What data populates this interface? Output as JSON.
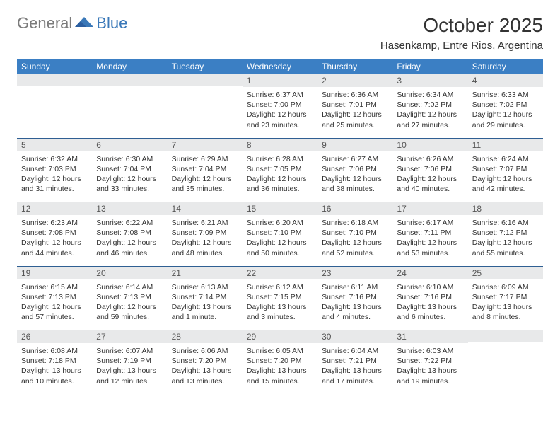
{
  "brand": {
    "general": "General",
    "blue": "Blue"
  },
  "title": "October 2025",
  "location": "Hasenkamp, Entre Rios, Argentina",
  "colors": {
    "header_bg": "#3b7fc4",
    "header_text": "#ffffff",
    "daynum_bg": "#e8e9ea",
    "week_sep": "#2f5f93",
    "logo_gray": "#7b7b7b",
    "logo_blue": "#3a78b8"
  },
  "weekdays": [
    "Sunday",
    "Monday",
    "Tuesday",
    "Wednesday",
    "Thursday",
    "Friday",
    "Saturday"
  ],
  "weeks": [
    [
      {
        "n": "",
        "sr": "",
        "ss": "",
        "dl": ""
      },
      {
        "n": "",
        "sr": "",
        "ss": "",
        "dl": ""
      },
      {
        "n": "",
        "sr": "",
        "ss": "",
        "dl": ""
      },
      {
        "n": "1",
        "sr": "Sunrise: 6:37 AM",
        "ss": "Sunset: 7:00 PM",
        "dl": "Daylight: 12 hours and 23 minutes."
      },
      {
        "n": "2",
        "sr": "Sunrise: 6:36 AM",
        "ss": "Sunset: 7:01 PM",
        "dl": "Daylight: 12 hours and 25 minutes."
      },
      {
        "n": "3",
        "sr": "Sunrise: 6:34 AM",
        "ss": "Sunset: 7:02 PM",
        "dl": "Daylight: 12 hours and 27 minutes."
      },
      {
        "n": "4",
        "sr": "Sunrise: 6:33 AM",
        "ss": "Sunset: 7:02 PM",
        "dl": "Daylight: 12 hours and 29 minutes."
      }
    ],
    [
      {
        "n": "5",
        "sr": "Sunrise: 6:32 AM",
        "ss": "Sunset: 7:03 PM",
        "dl": "Daylight: 12 hours and 31 minutes."
      },
      {
        "n": "6",
        "sr": "Sunrise: 6:30 AM",
        "ss": "Sunset: 7:04 PM",
        "dl": "Daylight: 12 hours and 33 minutes."
      },
      {
        "n": "7",
        "sr": "Sunrise: 6:29 AM",
        "ss": "Sunset: 7:04 PM",
        "dl": "Daylight: 12 hours and 35 minutes."
      },
      {
        "n": "8",
        "sr": "Sunrise: 6:28 AM",
        "ss": "Sunset: 7:05 PM",
        "dl": "Daylight: 12 hours and 36 minutes."
      },
      {
        "n": "9",
        "sr": "Sunrise: 6:27 AM",
        "ss": "Sunset: 7:06 PM",
        "dl": "Daylight: 12 hours and 38 minutes."
      },
      {
        "n": "10",
        "sr": "Sunrise: 6:26 AM",
        "ss": "Sunset: 7:06 PM",
        "dl": "Daylight: 12 hours and 40 minutes."
      },
      {
        "n": "11",
        "sr": "Sunrise: 6:24 AM",
        "ss": "Sunset: 7:07 PM",
        "dl": "Daylight: 12 hours and 42 minutes."
      }
    ],
    [
      {
        "n": "12",
        "sr": "Sunrise: 6:23 AM",
        "ss": "Sunset: 7:08 PM",
        "dl": "Daylight: 12 hours and 44 minutes."
      },
      {
        "n": "13",
        "sr": "Sunrise: 6:22 AM",
        "ss": "Sunset: 7:08 PM",
        "dl": "Daylight: 12 hours and 46 minutes."
      },
      {
        "n": "14",
        "sr": "Sunrise: 6:21 AM",
        "ss": "Sunset: 7:09 PM",
        "dl": "Daylight: 12 hours and 48 minutes."
      },
      {
        "n": "15",
        "sr": "Sunrise: 6:20 AM",
        "ss": "Sunset: 7:10 PM",
        "dl": "Daylight: 12 hours and 50 minutes."
      },
      {
        "n": "16",
        "sr": "Sunrise: 6:18 AM",
        "ss": "Sunset: 7:10 PM",
        "dl": "Daylight: 12 hours and 52 minutes."
      },
      {
        "n": "17",
        "sr": "Sunrise: 6:17 AM",
        "ss": "Sunset: 7:11 PM",
        "dl": "Daylight: 12 hours and 53 minutes."
      },
      {
        "n": "18",
        "sr": "Sunrise: 6:16 AM",
        "ss": "Sunset: 7:12 PM",
        "dl": "Daylight: 12 hours and 55 minutes."
      }
    ],
    [
      {
        "n": "19",
        "sr": "Sunrise: 6:15 AM",
        "ss": "Sunset: 7:13 PM",
        "dl": "Daylight: 12 hours and 57 minutes."
      },
      {
        "n": "20",
        "sr": "Sunrise: 6:14 AM",
        "ss": "Sunset: 7:13 PM",
        "dl": "Daylight: 12 hours and 59 minutes."
      },
      {
        "n": "21",
        "sr": "Sunrise: 6:13 AM",
        "ss": "Sunset: 7:14 PM",
        "dl": "Daylight: 13 hours and 1 minute."
      },
      {
        "n": "22",
        "sr": "Sunrise: 6:12 AM",
        "ss": "Sunset: 7:15 PM",
        "dl": "Daylight: 13 hours and 3 minutes."
      },
      {
        "n": "23",
        "sr": "Sunrise: 6:11 AM",
        "ss": "Sunset: 7:16 PM",
        "dl": "Daylight: 13 hours and 4 minutes."
      },
      {
        "n": "24",
        "sr": "Sunrise: 6:10 AM",
        "ss": "Sunset: 7:16 PM",
        "dl": "Daylight: 13 hours and 6 minutes."
      },
      {
        "n": "25",
        "sr": "Sunrise: 6:09 AM",
        "ss": "Sunset: 7:17 PM",
        "dl": "Daylight: 13 hours and 8 minutes."
      }
    ],
    [
      {
        "n": "26",
        "sr": "Sunrise: 6:08 AM",
        "ss": "Sunset: 7:18 PM",
        "dl": "Daylight: 13 hours and 10 minutes."
      },
      {
        "n": "27",
        "sr": "Sunrise: 6:07 AM",
        "ss": "Sunset: 7:19 PM",
        "dl": "Daylight: 13 hours and 12 minutes."
      },
      {
        "n": "28",
        "sr": "Sunrise: 6:06 AM",
        "ss": "Sunset: 7:20 PM",
        "dl": "Daylight: 13 hours and 13 minutes."
      },
      {
        "n": "29",
        "sr": "Sunrise: 6:05 AM",
        "ss": "Sunset: 7:20 PM",
        "dl": "Daylight: 13 hours and 15 minutes."
      },
      {
        "n": "30",
        "sr": "Sunrise: 6:04 AM",
        "ss": "Sunset: 7:21 PM",
        "dl": "Daylight: 13 hours and 17 minutes."
      },
      {
        "n": "31",
        "sr": "Sunrise: 6:03 AM",
        "ss": "Sunset: 7:22 PM",
        "dl": "Daylight: 13 hours and 19 minutes."
      },
      {
        "n": "",
        "sr": "",
        "ss": "",
        "dl": ""
      }
    ]
  ]
}
